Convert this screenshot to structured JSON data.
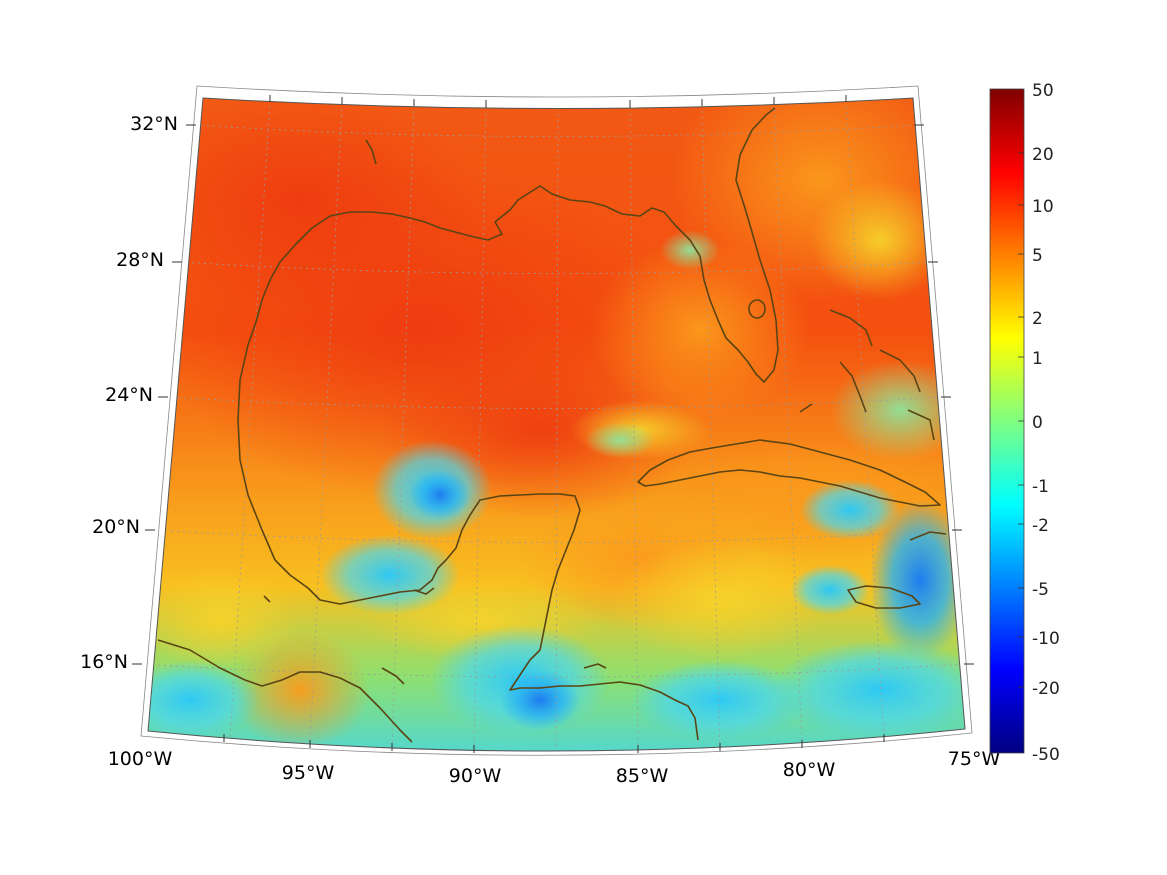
{
  "map": {
    "projection": "conic",
    "lat_ticks": [
      "32°N",
      "28°N",
      "24°N",
      "20°N",
      "16°N"
    ],
    "lon_ticks": [
      "100°W",
      "95°W",
      "90°W",
      "85°W",
      "80°W",
      "75°W"
    ],
    "coastline_color": "#5a4414",
    "graticule_color": "#9a9a9a"
  },
  "colorbar": {
    "colormap": "jet",
    "tick_labels": [
      "50",
      "20",
      "10",
      "5",
      "2",
      "1",
      "0",
      "-1",
      "-2",
      "-5",
      "-10",
      "-20",
      "-50"
    ],
    "range": [
      -50,
      50
    ]
  }
}
